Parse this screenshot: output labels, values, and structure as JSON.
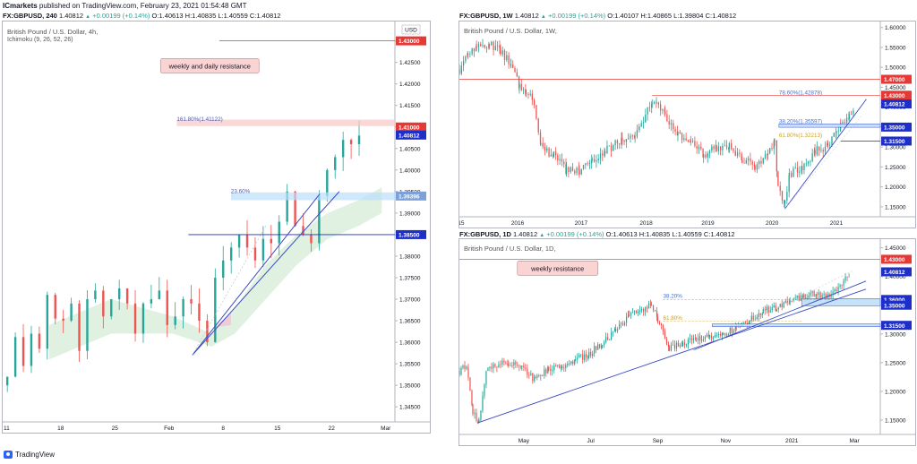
{
  "header": {
    "broker": "ICmarkets",
    "published": "published on TradingView.com, February 23, 2021 01:54:48 GMT"
  },
  "footer": {
    "logo_text": "TradingView"
  },
  "colors": {
    "up": "#26a69a",
    "down": "#ef5350",
    "trend": "#3a4cc4",
    "resistance": "#e53935",
    "support": "#1e2ec8"
  },
  "chart_data": [
    {
      "id": "h4",
      "type": "candlestick",
      "symbol_line": {
        "symbol": "FX:GBPUSD, 240",
        "last": "1.40812",
        "change": "+0.00199 (+0.14%)",
        "open": "O:1.40613",
        "high": "H:1.40835",
        "low": "L:1.40559",
        "close": "C:1.40812"
      },
      "legend": "British Pound / U.S. Dollar, 4h,",
      "indicator": "Ichimoku (9, 26, 52, 26)",
      "currency": "USD",
      "y_ticks": [
        "1.43000",
        "1.42500",
        "1.42000",
        "1.41500",
        "1.41000",
        "1.40500",
        "1.40000",
        "1.39500",
        "1.39000",
        "1.38500",
        "1.38000",
        "1.37500",
        "1.37000",
        "1.36500",
        "1.36000",
        "1.35500",
        "1.35000",
        "1.34500"
      ],
      "y_tick_values": [
        1.43,
        1.425,
        1.42,
        1.415,
        1.41,
        1.405,
        1.4,
        1.395,
        1.39,
        1.385,
        1.38,
        1.375,
        1.37,
        1.365,
        1.36,
        1.355,
        1.35,
        1.345
      ],
      "ylim": [
        1.3415,
        1.4345
      ],
      "x_ticks": [
        "11",
        "18",
        "25",
        "Feb",
        "8",
        "15",
        "22",
        "Mar"
      ],
      "x_tick_pos": [
        0.5,
        7.5,
        14.5,
        21.5,
        28.5,
        35.5,
        42.5,
        49.5
      ],
      "xlim": [
        0,
        50
      ],
      "closes": [
        1.352,
        1.3612,
        1.3545,
        1.362,
        1.3585,
        1.371,
        1.3655,
        1.365,
        1.369,
        1.358,
        1.37,
        1.372,
        1.366,
        1.37,
        1.3725,
        1.369,
        1.362,
        1.369,
        1.37,
        1.372,
        1.364,
        1.366,
        1.37,
        1.369,
        1.365,
        1.36,
        1.375,
        1.379,
        1.382,
        1.385,
        1.382,
        1.379,
        1.384,
        1.383,
        1.388,
        1.395,
        1.387,
        1.385,
        1.383,
        1.394,
        1.4,
        1.403,
        1.407,
        1.406,
        1.408
      ],
      "price_tags": [
        {
          "label": "1.43000",
          "value": 1.43,
          "color": "#e53935"
        },
        {
          "label": "1.41000",
          "value": 1.41,
          "color": "#e53935"
        },
        {
          "label": "1.40812",
          "value": 1.40812,
          "color": "#1e2ec8"
        },
        {
          "label": "1.39396",
          "value": 1.39396,
          "color": "#7ea0d8"
        },
        {
          "label": "1.38500",
          "value": 1.385,
          "color": "#1e2ec8"
        }
      ],
      "annotations": [
        {
          "text": "weekly and daily resistance",
          "x": 20.4,
          "y": 1.424
        },
        {
          "text": "161.80%(1.41122)",
          "x": 22.5,
          "y": 1.4112
        },
        {
          "text": "23.60%",
          "x": 29.5,
          "y": 1.3945
        }
      ]
    },
    {
      "id": "w1",
      "type": "candlestick",
      "symbol_line": {
        "symbol": "FX:GBPUSD, 1W",
        "last": "1.40812",
        "change": "+0.00199 (+0.14%)",
        "open": "O:1.40107",
        "high": "H:1.40865",
        "low": "L:1.39804",
        "close": "C:1.40812"
      },
      "legend": "British Pound / U.S. Dollar, 1W,",
      "y_ticks": [
        "1.60000",
        "1.55000",
        "1.50000",
        "1.45000",
        "1.40000",
        "1.35000",
        "1.30000",
        "1.25000",
        "1.20000",
        "1.15000"
      ],
      "y_tick_values": [
        1.6,
        1.55,
        1.5,
        1.45,
        1.4,
        1.35,
        1.3,
        1.25,
        1.2,
        1.15
      ],
      "ylim": [
        1.125,
        1.615
      ],
      "x_ticks": [
        "15",
        "2016",
        "2017",
        "2018",
        "2019",
        "2020",
        "2021"
      ],
      "x_tick_pos": [
        2,
        68,
        142,
        218,
        290,
        365,
        440
      ],
      "xlim": [
        0,
        485
      ],
      "anchors": [
        [
          0,
          1.495
        ],
        [
          10,
          1.535
        ],
        [
          20,
          1.555
        ],
        [
          35,
          1.56
        ],
        [
          48,
          1.54
        ],
        [
          60,
          1.51
        ],
        [
          70,
          1.45
        ],
        [
          78,
          1.43
        ],
        [
          85,
          1.425
        ],
        [
          95,
          1.3
        ],
        [
          110,
          1.28
        ],
        [
          125,
          1.24
        ],
        [
          140,
          1.24
        ],
        [
          155,
          1.26
        ],
        [
          170,
          1.29
        ],
        [
          190,
          1.32
        ],
        [
          205,
          1.33
        ],
        [
          210,
          1.35
        ],
        [
          225,
          1.42
        ],
        [
          230,
          1.42
        ],
        [
          240,
          1.38
        ],
        [
          255,
          1.33
        ],
        [
          270,
          1.31
        ],
        [
          285,
          1.28
        ],
        [
          300,
          1.3
        ],
        [
          315,
          1.3
        ],
        [
          330,
          1.27
        ],
        [
          345,
          1.25
        ],
        [
          360,
          1.29
        ],
        [
          368,
          1.31
        ],
        [
          372,
          1.2
        ],
        [
          380,
          1.16
        ],
        [
          385,
          1.23
        ],
        [
          400,
          1.25
        ],
        [
          415,
          1.29
        ],
        [
          430,
          1.3
        ],
        [
          440,
          1.34
        ],
        [
          445,
          1.36
        ],
        [
          455,
          1.38
        ],
        [
          462,
          1.408
        ]
      ],
      "price_tags": [
        {
          "label": "1.47000",
          "value": 1.47,
          "color": "#e53935"
        },
        {
          "label": "1.43000",
          "value": 1.43,
          "color": "#e53935"
        },
        {
          "label": "1.40812",
          "value": 1.40812,
          "color": "#1e2ec8"
        },
        {
          "label": "1.35000",
          "value": 1.35,
          "color": "#1e2ec8"
        },
        {
          "label": "1.31500",
          "value": 1.315,
          "color": "#1e2ec8"
        }
      ],
      "annotations": [
        {
          "text": "78.60%(1.42878)",
          "x": 373,
          "y": 1.4288
        },
        {
          "text": "38.20%(1.35597)",
          "x": 373,
          "y": 1.356
        },
        {
          "text": "61.80%(1.32213)",
          "x": 373,
          "y": 1.3221
        }
      ]
    },
    {
      "id": "d1",
      "type": "candlestick",
      "symbol_line": {
        "symbol": "FX:GBPUSD, 1D",
        "last": "1.40812",
        "change": "+0.00199 (+0.14%)",
        "open": "O:1.40613",
        "high": "H:1.40835",
        "low": "L:1.40559",
        "close": "C:1.40812"
      },
      "legend": "British Pound / U.S. Dollar, 1D,",
      "y_ticks": [
        "1.45000",
        "1.40000",
        "1.35000",
        "1.30000",
        "1.25000",
        "1.20000",
        "1.15000"
      ],
      "y_tick_values": [
        1.45,
        1.4,
        1.35,
        1.3,
        1.25,
        1.2,
        1.15
      ],
      "ylim": [
        1.125,
        1.465
      ],
      "x_ticks": [
        "May",
        "Jul",
        "Sep",
        "Nov",
        "2021",
        "Mar"
      ],
      "x_tick_pos": [
        72,
        147,
        222,
        298,
        372,
        442
      ],
      "xlim": [
        0,
        465
      ],
      "anchors": [
        [
          0,
          1.235
        ],
        [
          8,
          1.245
        ],
        [
          15,
          1.16
        ],
        [
          22,
          1.15
        ],
        [
          30,
          1.235
        ],
        [
          40,
          1.245
        ],
        [
          55,
          1.25
        ],
        [
          70,
          1.24
        ],
        [
          85,
          1.22
        ],
        [
          100,
          1.24
        ],
        [
          115,
          1.24
        ],
        [
          130,
          1.255
        ],
        [
          145,
          1.265
        ],
        [
          160,
          1.285
        ],
        [
          175,
          1.305
        ],
        [
          190,
          1.33
        ],
        [
          200,
          1.34
        ],
        [
          215,
          1.35
        ],
        [
          222,
          1.325
        ],
        [
          235,
          1.275
        ],
        [
          250,
          1.285
        ],
        [
          265,
          1.29
        ],
        [
          280,
          1.295
        ],
        [
          295,
          1.3
        ],
        [
          310,
          1.31
        ],
        [
          325,
          1.325
        ],
        [
          340,
          1.34
        ],
        [
          355,
          1.345
        ],
        [
          370,
          1.36
        ],
        [
          385,
          1.365
        ],
        [
          400,
          1.37
        ],
        [
          410,
          1.365
        ],
        [
          420,
          1.375
        ],
        [
          430,
          1.39
        ],
        [
          438,
          1.408
        ]
      ],
      "price_tags": [
        {
          "label": "1.43000",
          "value": 1.43,
          "color": "#e53935"
        },
        {
          "label": "1.40812",
          "value": 1.40812,
          "color": "#1e2ec8"
        },
        {
          "label": "1.36000",
          "value": 1.36,
          "color": "#1e2ec8"
        },
        {
          "label": "1.35000",
          "value": 1.35,
          "color": "#1e2ec8"
        },
        {
          "label": "1.31500",
          "value": 1.315,
          "color": "#1e2ec8"
        }
      ],
      "annotations": [
        {
          "text": "weekly resistance",
          "x": 110,
          "y": 1.413
        },
        {
          "text": "38.20%",
          "x": 228,
          "y": 1.3605
        },
        {
          "text": "61.80%",
          "x": 228,
          "y": 1.3225
        }
      ]
    }
  ]
}
